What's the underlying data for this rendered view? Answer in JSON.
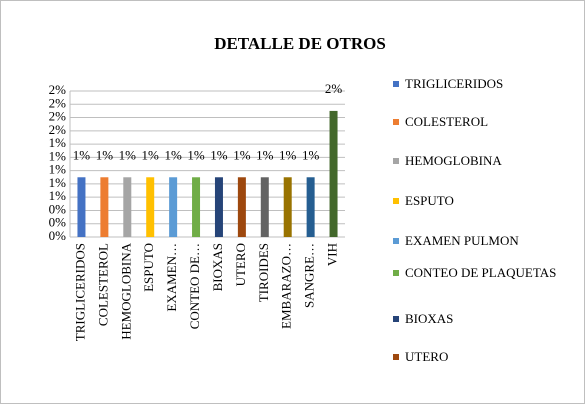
{
  "chart_data": {
    "type": "bar",
    "title": "DETALLE  DE  OTROS",
    "categories": [
      "TRIGLICERIDOS",
      "COLESTEROL",
      "HEMOGLOBINA",
      "ESPUTO",
      "EXAMEN…",
      "CONTEO DE…",
      "BIOXAS",
      "UTERO",
      "TIROIDES",
      "EMBARAZO…",
      "SANGRE…",
      "VIH"
    ],
    "values": [
      0.9,
      0.9,
      0.9,
      0.9,
      0.9,
      0.9,
      0.9,
      0.9,
      0.9,
      0.9,
      0.9,
      1.9
    ],
    "value_labels": [
      "1%",
      "1%",
      "1%",
      "1%",
      "1%",
      "1%",
      "1%",
      "1%",
      "1%",
      "1%",
      "1%",
      "2%"
    ],
    "colors": [
      "#4472c4",
      "#ed7d31",
      "#a5a5a5",
      "#ffc000",
      "#5b9bd5",
      "#70ad47",
      "#264478",
      "#9e480e",
      "#636363",
      "#997300",
      "#255e91",
      "#43682b"
    ],
    "legend": [
      "TRIGLICERIDOS",
      "COLESTEROL",
      "HEMOGLOBINA",
      "ESPUTO",
      "EXAMEN PULMON",
      "CONTEO DE PLAQUETAS",
      "BIOXAS",
      "UTERO"
    ],
    "ylim": [
      0,
      2.2
    ],
    "yticks": [
      {
        "value": 0,
        "label": "0%"
      },
      {
        "value": 0.2,
        "label": "0%"
      },
      {
        "value": 0.4,
        "label": "0%"
      },
      {
        "value": 0.6,
        "label": "1%"
      },
      {
        "value": 0.8,
        "label": "1%"
      },
      {
        "value": 1.0,
        "label": "1%"
      },
      {
        "value": 1.2,
        "label": "1%"
      },
      {
        "value": 1.4,
        "label": "1%"
      },
      {
        "value": 1.6,
        "label": "2%"
      },
      {
        "value": 1.8,
        "label": "2%"
      },
      {
        "value": 2.0,
        "label": "2%"
      },
      {
        "value": 2.2,
        "label": "2%"
      }
    ],
    "grid": true
  }
}
